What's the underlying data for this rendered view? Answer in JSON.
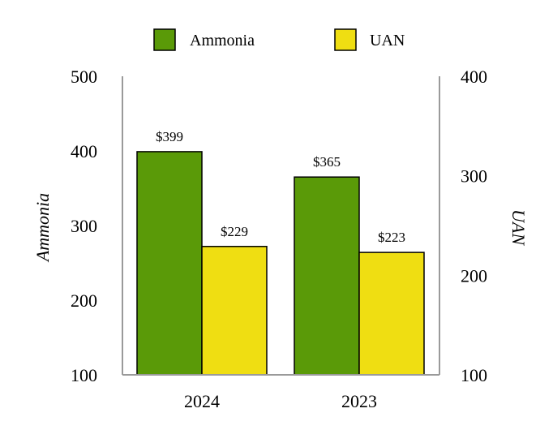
{
  "chart_data": {
    "type": "bar",
    "categories": [
      "2024",
      "2023"
    ],
    "series": [
      {
        "name": "Ammonia",
        "axis": "left",
        "color": "#5a9a08",
        "values": [
          399,
          365
        ],
        "labels": [
          "$399",
          "$365"
        ]
      },
      {
        "name": "UAN",
        "axis": "right",
        "color": "#efde12",
        "values": [
          229,
          223
        ],
        "labels": [
          "$229",
          "$223"
        ]
      }
    ],
    "left_axis": {
      "label": "Ammonia",
      "range": [
        100,
        500
      ],
      "ticks": [
        100,
        200,
        300,
        400,
        500
      ]
    },
    "right_axis": {
      "label": "UAN",
      "range": [
        100,
        400
      ],
      "ticks": [
        100,
        200,
        300,
        400
      ]
    },
    "legend_position": "top-center",
    "grid": false
  }
}
